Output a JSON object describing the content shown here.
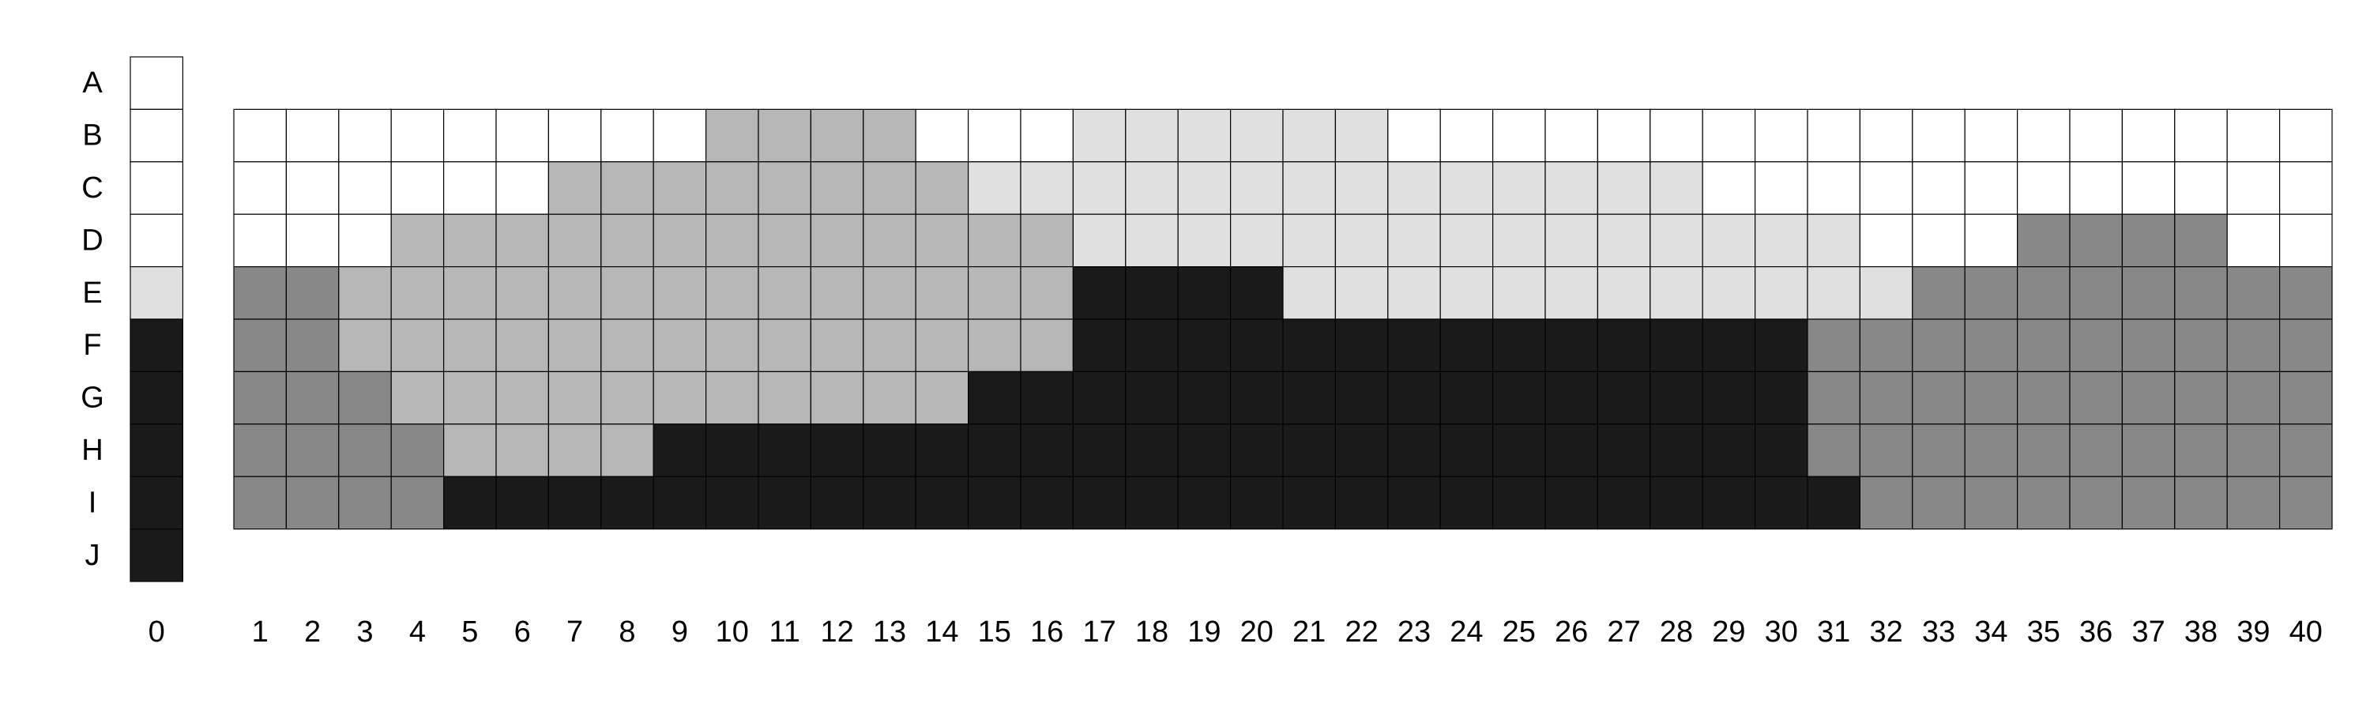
{
  "chart_data": {
    "type": "heatmap",
    "title": "",
    "xlabel": "",
    "ylabel": "",
    "grid": true,
    "legend": "none",
    "row_labels": [
      "A",
      "B",
      "C",
      "D",
      "E",
      "F",
      "G",
      "H",
      "I",
      "J"
    ],
    "reference_column": {
      "label": "0",
      "values": [
        0,
        0,
        0,
        0,
        1,
        4,
        4,
        4,
        4,
        4
      ]
    },
    "column_labels": [
      "1",
      "2",
      "3",
      "4",
      "5",
      "6",
      "7",
      "8",
      "9",
      "10",
      "11",
      "12",
      "13",
      "14",
      "15",
      "16",
      "17",
      "18",
      "19",
      "20",
      "21",
      "22",
      "23",
      "24",
      "25",
      "26",
      "27",
      "28",
      "29",
      "30",
      "31",
      "32",
      "33",
      "34",
      "35",
      "36",
      "37",
      "38",
      "39",
      "40"
    ],
    "grid_rows": [
      "B",
      "C",
      "D",
      "E",
      "F",
      "G",
      "H",
      "I"
    ],
    "values": [
      "0000000002222000111111000000000000000000",
      "0000002222222211111111111111000000000000",
      "0002222222222222111111111111111000333300",
      "3322222222222222444411111111111133333333",
      "3322222222222222444444444444443333333333",
      "3332222222222244444444444444443333333333",
      "3333222244444444444444444444443333333333",
      "3333444444444444444444444444444333333333"
    ],
    "category_colors": [
      "#ffffff",
      "#e0e0e0",
      "#b7b7b7",
      "#888888",
      "#1a1a1a"
    ]
  }
}
